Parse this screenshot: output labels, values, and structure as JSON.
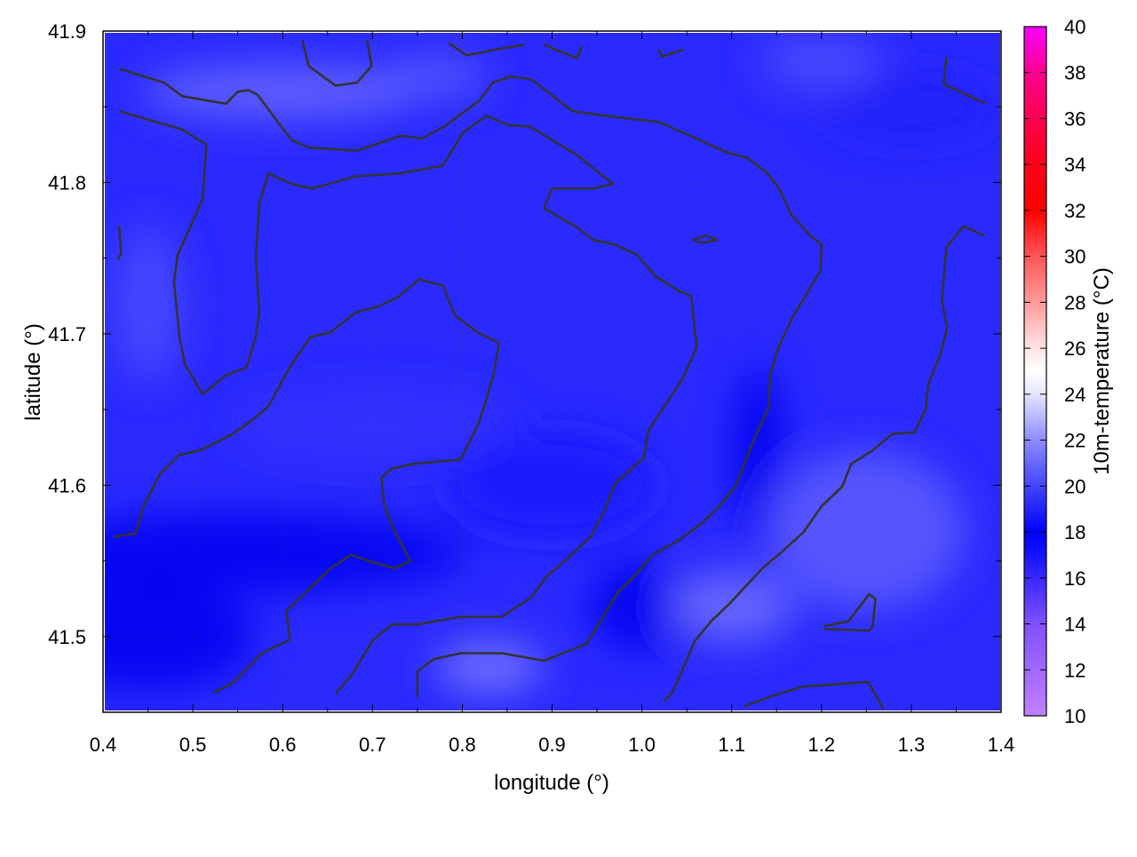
{
  "chart_data": {
    "type": "heatmap",
    "title": "",
    "xlabel": "longitude (°)",
    "ylabel": "latitude (°)",
    "xlim": [
      0.4,
      1.4
    ],
    "ylim": [
      41.45,
      41.9
    ],
    "xticks": [
      "0.4",
      "0.5",
      "0.6",
      "0.7",
      "0.8",
      "0.9",
      "1.0",
      "1.1",
      "1.2",
      "1.3",
      "1.4"
    ],
    "yticks": [
      "41.5",
      "41.6",
      "41.7",
      "41.8",
      "41.9"
    ],
    "grid": true,
    "colorbar": {
      "label": "10m-temperature (°C)",
      "range": [
        10,
        40
      ],
      "ticks": [
        "10",
        "12",
        "14",
        "16",
        "18",
        "20",
        "22",
        "24",
        "26",
        "28",
        "30",
        "32",
        "34",
        "36",
        "38",
        "40"
      ],
      "palette": [
        [
          10,
          "#c080ff"
        ],
        [
          14,
          "#8050ff"
        ],
        [
          17,
          "#1414ff"
        ],
        [
          18,
          "#0000ff"
        ],
        [
          20,
          "#4444ff"
        ],
        [
          22,
          "#8c8cff"
        ],
        [
          24,
          "#e4e4ff"
        ],
        [
          25,
          "#ffffff"
        ],
        [
          26,
          "#ffe4e4"
        ],
        [
          28,
          "#ff9a9a"
        ],
        [
          30,
          "#ff5555"
        ],
        [
          32,
          "#ff0000"
        ],
        [
          34,
          "#ff0018"
        ],
        [
          36,
          "#ff0050"
        ],
        [
          38,
          "#ff0090"
        ],
        [
          40,
          "#ff00ff"
        ]
      ]
    },
    "field_note_colors": {
      "base": "#2a2aff",
      "cold": "#0000f0",
      "warm": "#6a6aff",
      "contour": "#333333"
    },
    "contours": [
      [
        [
          0.418,
          41.847
        ],
        [
          0.488,
          41.835
        ],
        [
          0.515,
          41.825
        ],
        [
          0.511,
          41.789
        ],
        [
          0.483,
          41.752
        ],
        [
          0.479,
          41.734
        ],
        [
          0.485,
          41.699
        ],
        [
          0.491,
          41.68
        ],
        [
          0.511,
          41.66
        ],
        [
          0.535,
          41.672
        ],
        [
          0.56,
          41.678
        ],
        [
          0.57,
          41.698
        ],
        [
          0.574,
          41.715
        ],
        [
          0.57,
          41.75
        ],
        [
          0.574,
          41.786
        ],
        [
          0.584,
          41.806
        ],
        [
          0.61,
          41.799
        ],
        [
          0.633,
          41.796
        ],
        [
          0.681,
          41.804
        ],
        [
          0.73,
          41.806
        ],
        [
          0.778,
          41.811
        ],
        [
          0.801,
          41.833
        ],
        [
          0.827,
          41.844
        ],
        [
          0.851,
          41.838
        ],
        [
          0.875,
          41.837
        ],
        [
          0.928,
          41.818
        ],
        [
          0.968,
          41.799
        ],
        [
          0.946,
          41.796
        ],
        [
          0.9,
          41.796
        ],
        [
          0.891,
          41.783
        ],
        [
          0.926,
          41.771
        ],
        [
          0.946,
          41.762
        ],
        [
          0.97,
          41.759
        ],
        [
          0.995,
          41.752
        ],
        [
          1.015,
          41.738
        ],
        [
          1.042,
          41.728
        ],
        [
          1.055,
          41.725
        ],
        [
          1.061,
          41.691
        ],
        [
          1.045,
          41.67
        ],
        [
          1.025,
          41.652
        ],
        [
          1.007,
          41.636
        ],
        [
          1.002,
          41.618
        ],
        [
          0.97,
          41.601
        ],
        [
          0.958,
          41.583
        ],
        [
          0.943,
          41.566
        ],
        [
          0.918,
          41.552
        ],
        [
          0.893,
          41.539
        ],
        [
          0.877,
          41.526
        ],
        [
          0.844,
          41.513
        ],
        [
          0.798,
          41.513
        ],
        [
          0.75,
          41.508
        ],
        [
          0.722,
          41.508
        ],
        [
          0.701,
          41.498
        ],
        [
          0.676,
          41.474
        ],
        [
          0.659,
          41.462
        ]
      ],
      [
        [
          0.412,
          41.566
        ],
        [
          0.436,
          41.568
        ],
        [
          0.445,
          41.586
        ],
        [
          0.463,
          41.607
        ],
        [
          0.485,
          41.62
        ],
        [
          0.508,
          41.623
        ],
        [
          0.542,
          41.633
        ],
        [
          0.564,
          41.642
        ],
        [
          0.584,
          41.652
        ],
        [
          0.607,
          41.677
        ],
        [
          0.631,
          41.698
        ],
        [
          0.653,
          41.701
        ],
        [
          0.681,
          41.714
        ],
        [
          0.706,
          41.718
        ],
        [
          0.728,
          41.724
        ],
        [
          0.752,
          41.736
        ],
        [
          0.778,
          41.732
        ],
        [
          0.792,
          41.712
        ],
        [
          0.817,
          41.701
        ],
        [
          0.841,
          41.694
        ],
        [
          0.835,
          41.674
        ],
        [
          0.827,
          41.657
        ],
        [
          0.817,
          41.639
        ],
        [
          0.798,
          41.617
        ],
        [
          0.745,
          41.614
        ],
        [
          0.722,
          41.611
        ],
        [
          0.71,
          41.605
        ],
        [
          0.713,
          41.587
        ],
        [
          0.725,
          41.569
        ],
        [
          0.742,
          41.55
        ],
        [
          0.725,
          41.545
        ],
        [
          0.701,
          41.549
        ],
        [
          0.676,
          41.554
        ],
        [
          0.653,
          41.545
        ],
        [
          0.636,
          41.535
        ],
        [
          0.604,
          41.517
        ],
        [
          0.608,
          41.498
        ],
        [
          0.577,
          41.489
        ],
        [
          0.544,
          41.469
        ],
        [
          0.523,
          41.463
        ]
      ],
      [
        [
          0.418,
          41.875
        ],
        [
          0.468,
          41.866
        ],
        [
          0.488,
          41.857
        ],
        [
          0.537,
          41.852
        ],
        [
          0.55,
          41.86
        ],
        [
          0.562,
          41.861
        ],
        [
          0.572,
          41.858
        ],
        [
          0.597,
          41.838
        ],
        [
          0.61,
          41.828
        ],
        [
          0.629,
          41.823
        ],
        [
          0.683,
          41.821
        ],
        [
          0.732,
          41.831
        ],
        [
          0.755,
          41.829
        ],
        [
          0.78,
          41.837
        ],
        [
          0.819,
          41.854
        ],
        [
          0.834,
          41.866
        ],
        [
          0.854,
          41.87
        ],
        [
          0.877,
          41.868
        ],
        [
          0.899,
          41.858
        ],
        [
          0.923,
          41.847
        ],
        [
          0.973,
          41.843
        ],
        [
          1.019,
          41.84
        ],
        [
          1.057,
          41.83
        ],
        [
          1.094,
          41.82
        ],
        [
          1.118,
          41.816
        ],
        [
          1.138,
          41.807
        ],
        [
          1.152,
          41.797
        ],
        [
          1.166,
          41.779
        ],
        [
          1.187,
          41.765
        ],
        [
          1.2,
          41.759
        ],
        [
          1.199,
          41.742
        ],
        [
          1.187,
          41.73
        ],
        [
          1.168,
          41.711
        ],
        [
          1.152,
          41.691
        ],
        [
          1.143,
          41.674
        ],
        [
          1.141,
          41.651
        ],
        [
          1.126,
          41.632
        ],
        [
          1.104,
          41.599
        ],
        [
          1.086,
          41.586
        ],
        [
          1.067,
          41.575
        ],
        [
          1.042,
          41.564
        ],
        [
          1.012,
          41.554
        ],
        [
          0.99,
          41.539
        ],
        [
          0.973,
          41.529
        ],
        [
          0.958,
          41.514
        ],
        [
          0.938,
          41.495
        ],
        [
          0.891,
          41.484
        ],
        [
          0.844,
          41.489
        ],
        [
          0.798,
          41.489
        ],
        [
          0.768,
          41.485
        ],
        [
          0.75,
          41.477
        ],
        [
          0.75,
          41.46
        ]
      ],
      [
        [
          1.381,
          41.765
        ],
        [
          1.358,
          41.771
        ],
        [
          1.339,
          41.757
        ],
        [
          1.334,
          41.722
        ],
        [
          1.34,
          41.704
        ],
        [
          1.332,
          41.686
        ],
        [
          1.319,
          41.667
        ],
        [
          1.316,
          41.65
        ],
        [
          1.304,
          41.635
        ],
        [
          1.279,
          41.634
        ],
        [
          1.257,
          41.623
        ],
        [
          1.233,
          41.614
        ],
        [
          1.223,
          41.599
        ],
        [
          1.2,
          41.586
        ],
        [
          1.18,
          41.569
        ],
        [
          1.156,
          41.556
        ],
        [
          1.134,
          41.545
        ],
        [
          1.098,
          41.522
        ],
        [
          1.077,
          41.51
        ],
        [
          1.059,
          41.497
        ],
        [
          1.045,
          41.478
        ],
        [
          1.035,
          41.464
        ],
        [
          1.025,
          41.457
        ]
      ],
      [
        [
          1.114,
          41.454
        ],
        [
          1.146,
          41.461
        ],
        [
          1.18,
          41.467
        ],
        [
          1.252,
          41.47
        ],
        [
          1.269,
          41.452
        ]
      ],
      [
        [
          1.203,
          41.507
        ],
        [
          1.23,
          41.51
        ],
        [
          1.253,
          41.528
        ],
        [
          1.26,
          41.525
        ],
        [
          1.257,
          41.507
        ],
        [
          1.253,
          41.504
        ],
        [
          1.203,
          41.505
        ]
      ],
      [
        [
          0.622,
          41.894
        ],
        [
          0.629,
          41.877
        ],
        [
          0.659,
          41.864
        ],
        [
          0.683,
          41.866
        ],
        [
          0.699,
          41.877
        ],
        [
          0.694,
          41.894
        ]
      ],
      [
        [
          0.785,
          41.892
        ],
        [
          0.805,
          41.884
        ],
        [
          0.839,
          41.888
        ],
        [
          0.869,
          41.891
        ]
      ],
      [
        [
          0.891,
          41.891
        ],
        [
          0.928,
          41.882
        ],
        [
          0.933,
          41.89
        ]
      ],
      [
        [
          1.019,
          41.888
        ],
        [
          1.022,
          41.883
        ],
        [
          1.047,
          41.888
        ]
      ],
      [
        [
          1.339,
          41.883
        ],
        [
          1.336,
          41.865
        ],
        [
          1.383,
          41.852
        ]
      ],
      [
        [
          0.418,
          41.771
        ],
        [
          0.42,
          41.753
        ],
        [
          0.416,
          41.749
        ]
      ],
      [
        [
          1.057,
          41.762
        ],
        [
          1.071,
          41.765
        ],
        [
          1.084,
          41.762
        ],
        [
          1.066,
          41.76
        ],
        [
          1.057,
          41.762
        ]
      ]
    ]
  }
}
